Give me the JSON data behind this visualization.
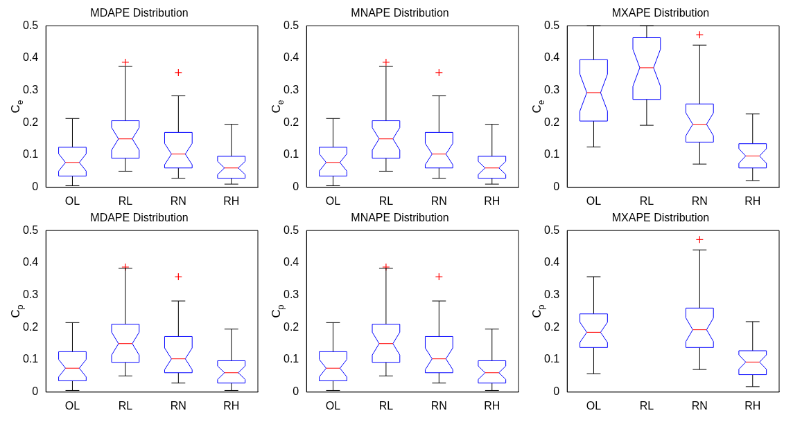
{
  "chart_data": [
    {
      "type": "box",
      "title": "MDAPE Distribution",
      "ylabel": "C$_{e}$",
      "categories": [
        "OL",
        "RL",
        "RN",
        "RH"
      ],
      "ylim": [
        0,
        0.5
      ],
      "yticks": [
        0,
        0.1,
        0.2,
        0.3,
        0.4,
        0.5
      ],
      "boxes": [
        {
          "low": 0.005,
          "q1": 0.035,
          "median": 0.077,
          "q3": 0.124,
          "high": 0.213
        },
        {
          "low": 0.05,
          "q1": 0.09,
          "median": 0.15,
          "q3": 0.206,
          "high": 0.374,
          "outliers": [
            0.387
          ]
        },
        {
          "low": 0.028,
          "q1": 0.06,
          "median": 0.103,
          "q3": 0.17,
          "high": 0.283,
          "outliers": [
            0.355
          ]
        },
        {
          "low": 0.01,
          "q1": 0.028,
          "median": 0.06,
          "q3": 0.096,
          "high": 0.195
        }
      ]
    },
    {
      "type": "box",
      "title": "MNAPE Distribution",
      "ylabel": "C$_{e}$",
      "categories": [
        "OL",
        "RL",
        "RN",
        "RH"
      ],
      "ylim": [
        0,
        0.5
      ],
      "yticks": [
        0,
        0.1,
        0.2,
        0.3,
        0.4,
        0.5
      ],
      "boxes": [
        {
          "low": 0.005,
          "q1": 0.035,
          "median": 0.077,
          "q3": 0.124,
          "high": 0.213
        },
        {
          "low": 0.05,
          "q1": 0.09,
          "median": 0.15,
          "q3": 0.206,
          "high": 0.374,
          "outliers": [
            0.387
          ]
        },
        {
          "low": 0.028,
          "q1": 0.06,
          "median": 0.103,
          "q3": 0.17,
          "high": 0.283,
          "outliers": [
            0.355
          ]
        },
        {
          "low": 0.01,
          "q1": 0.028,
          "median": 0.06,
          "q3": 0.096,
          "high": 0.195
        }
      ]
    },
    {
      "type": "box",
      "title": "MXAPE Distribution",
      "ylabel": "C$_{e}$",
      "categories": [
        "OL",
        "RL",
        "RN",
        "RH"
      ],
      "ylim": [
        0,
        0.5
      ],
      "yticks": [
        0,
        0.1,
        0.2,
        0.3,
        0.4,
        0.5
      ],
      "boxes": [
        {
          "low": 0.125,
          "q1": 0.205,
          "median": 0.293,
          "q3": 0.395,
          "high": 0.5
        },
        {
          "low": 0.192,
          "q1": 0.272,
          "median": 0.37,
          "q3": 0.463,
          "high": 0.5
        },
        {
          "low": 0.072,
          "q1": 0.14,
          "median": 0.195,
          "q3": 0.258,
          "high": 0.44,
          "outliers": [
            0.472
          ]
        },
        {
          "low": 0.021,
          "q1": 0.06,
          "median": 0.097,
          "q3": 0.135,
          "high": 0.227
        }
      ]
    },
    {
      "type": "box",
      "title": "MDAPE Distribution",
      "ylabel": "C$_{p}$",
      "categories": [
        "OL",
        "RL",
        "RN",
        "RH"
      ],
      "ylim": [
        0,
        0.5
      ],
      "yticks": [
        0,
        0.1,
        0.2,
        0.3,
        0.4,
        0.5
      ],
      "boxes": [
        {
          "low": 0.005,
          "q1": 0.035,
          "median": 0.074,
          "q3": 0.125,
          "high": 0.215
        },
        {
          "low": 0.05,
          "q1": 0.092,
          "median": 0.15,
          "q3": 0.21,
          "high": 0.383,
          "outliers": [
            0.387
          ]
        },
        {
          "low": 0.028,
          "q1": 0.06,
          "median": 0.103,
          "q3": 0.172,
          "high": 0.282,
          "outliers": [
            0.357
          ]
        },
        {
          "low": 0.005,
          "q1": 0.028,
          "median": 0.06,
          "q3": 0.097,
          "high": 0.195
        }
      ]
    },
    {
      "type": "box",
      "title": "MNAPE Distribution",
      "ylabel": "C$_{p}$",
      "categories": [
        "OL",
        "RL",
        "RN",
        "RH"
      ],
      "ylim": [
        0,
        0.5
      ],
      "yticks": [
        0,
        0.1,
        0.2,
        0.3,
        0.4,
        0.5
      ],
      "boxes": [
        {
          "low": 0.005,
          "q1": 0.035,
          "median": 0.074,
          "q3": 0.125,
          "high": 0.215
        },
        {
          "low": 0.05,
          "q1": 0.092,
          "median": 0.15,
          "q3": 0.21,
          "high": 0.383,
          "outliers": [
            0.387
          ]
        },
        {
          "low": 0.028,
          "q1": 0.06,
          "median": 0.103,
          "q3": 0.172,
          "high": 0.282,
          "outliers": [
            0.357
          ]
        },
        {
          "low": 0.005,
          "q1": 0.028,
          "median": 0.06,
          "q3": 0.097,
          "high": 0.195
        }
      ]
    },
    {
      "type": "box",
      "title": "MXAPE Distribution",
      "ylabel": "C$_{p}$",
      "categories": [
        "OL",
        "RL",
        "RN",
        "RH"
      ],
      "ylim": [
        0,
        0.5
      ],
      "yticks": [
        0,
        0.1,
        0.2,
        0.3,
        0.4,
        0.5
      ],
      "boxes": [
        {
          "low": 0.057,
          "q1": 0.138,
          "median": 0.185,
          "q3": 0.242,
          "high": 0.357
        },
        null,
        {
          "low": 0.07,
          "q1": 0.138,
          "median": 0.193,
          "q3": 0.26,
          "high": 0.44,
          "outliers": [
            0.472
          ]
        },
        {
          "low": 0.017,
          "q1": 0.054,
          "median": 0.093,
          "q3": 0.128,
          "high": 0.218
        }
      ]
    }
  ]
}
